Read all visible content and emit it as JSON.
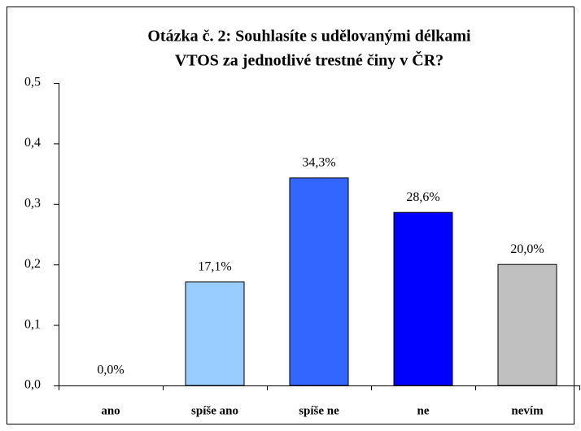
{
  "chart_data": {
    "type": "bar",
    "title": [
      "Otázka č. 2: Souhlasíte s udělovanými délkami",
      "VTOS za jednotlivé trestné činy v ČR?"
    ],
    "categories": [
      "ano",
      "spíše ano",
      "spíše ne",
      "ne",
      "nevím"
    ],
    "values": [
      0,
      0.171,
      0.343,
      0.286,
      0.2
    ],
    "value_labels": [
      "0,0%",
      "17,1%",
      "34,3%",
      "28,6%",
      "20,0%"
    ],
    "colors": [
      "#99ccff",
      "#99ccff",
      "#3366ff",
      "#0000ff",
      "#c0c0c0"
    ],
    "ylim": [
      0,
      0.5
    ],
    "yticks": [
      {
        "value": 0,
        "label": "0,0"
      },
      {
        "value": 0.1,
        "label": "0,1"
      },
      {
        "value": 0.2,
        "label": "0,2"
      },
      {
        "value": 0.3,
        "label": "0,3"
      },
      {
        "value": 0.4,
        "label": "0,4"
      },
      {
        "value": 0.5,
        "label": "0,5"
      }
    ],
    "grid": false
  }
}
